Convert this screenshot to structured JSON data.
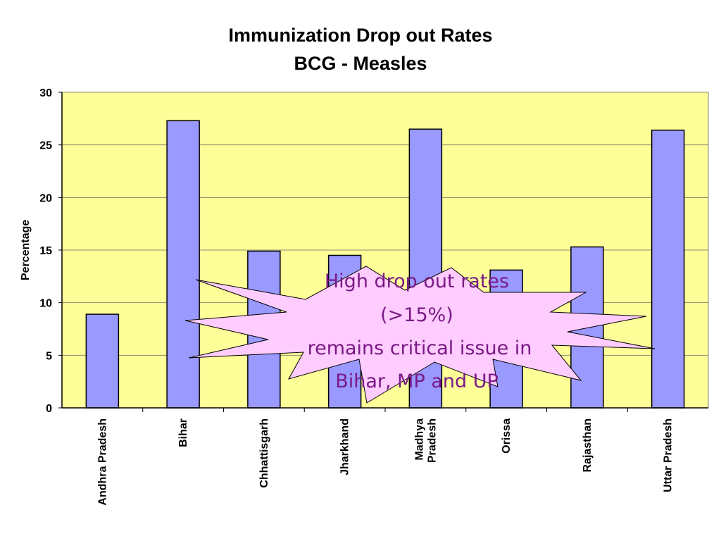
{
  "chart_data": {
    "type": "bar",
    "title": [
      "Immunization Drop out Rates",
      "BCG - Measles"
    ],
    "ylabel": "Percentage",
    "xlabel": "",
    "ylim": [
      0,
      30
    ],
    "yticks": [
      0,
      5,
      10,
      15,
      20,
      25,
      30
    ],
    "categories": [
      [
        "Andhra Pradesh"
      ],
      [
        "Bihar"
      ],
      [
        "Chhattisgarh"
      ],
      [
        "Jharkhand"
      ],
      [
        "Madhya",
        "Pradesh"
      ],
      [
        "Orissa"
      ],
      [
        "Rajasthan"
      ],
      [
        "Uttar Pradesh"
      ]
    ],
    "values": [
      8.9,
      27.3,
      14.9,
      14.5,
      26.5,
      13.1,
      15.3,
      26.4
    ],
    "grid": true,
    "legend": "none",
    "colors": {
      "plot_background": "#ffff99",
      "bar_fill": "#9999ff",
      "bar_stroke": "#000000",
      "gridline": "#8c8c6e",
      "callout_fill": "#ffccff",
      "callout_text": "#7a1a86"
    }
  },
  "callout": {
    "lines": [
      "High drop out rates",
      "(>15%)",
      "remains critical issue in",
      "Bihar, MP and UP"
    ]
  }
}
